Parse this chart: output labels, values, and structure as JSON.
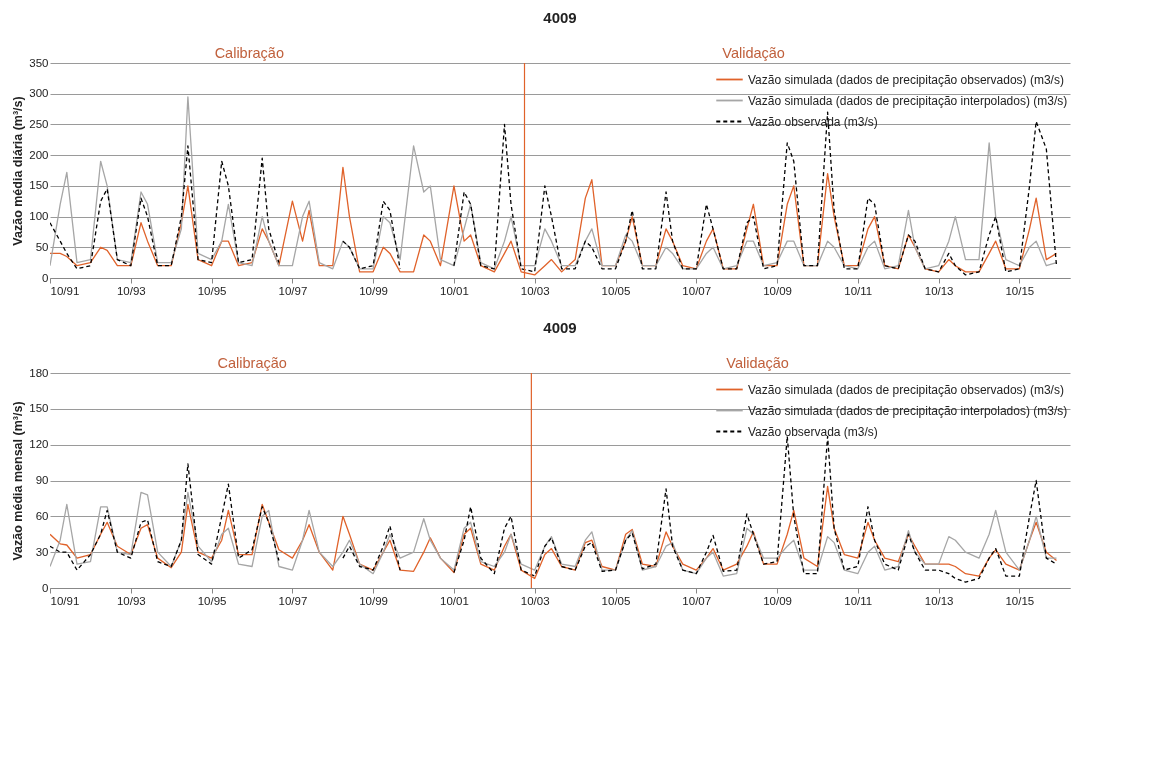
{
  "chart_data": [
    {
      "type": "line",
      "title": "4009",
      "ylabel": "Vazão média diária (m³/s)",
      "x": [
        "1991-10",
        "1992-01",
        "1992-03",
        "1992-06",
        "1992-10",
        "1993-01",
        "1993-03",
        "1993-06",
        "1993-10",
        "1994-01",
        "1994-03",
        "1994-06",
        "1994-10",
        "1995-01",
        "1995-03",
        "1995-06",
        "1995-10",
        "1996-01",
        "1996-03",
        "1996-06",
        "1996-10",
        "1997-01",
        "1997-03",
        "1997-06",
        "1997-10",
        "1998-01",
        "1998-03",
        "1998-06",
        "1998-10",
        "1999-01",
        "1999-03",
        "1999-06",
        "1999-10",
        "2000-01",
        "2000-03",
        "2000-06",
        "2000-10",
        "2001-01",
        "2001-03",
        "2001-06",
        "2001-10",
        "2002-01",
        "2002-03",
        "2002-06",
        "2002-10",
        "2003-01",
        "2003-03",
        "2003-06",
        "2003-10",
        "2004-01",
        "2004-03",
        "2004-06",
        "2004-10",
        "2005-01",
        "2005-03",
        "2005-06",
        "2005-10",
        "2006-01",
        "2006-03",
        "2006-06",
        "2006-10",
        "2007-01",
        "2007-03",
        "2007-06",
        "2007-10",
        "2008-01",
        "2008-03",
        "2008-06",
        "2008-10",
        "2009-01",
        "2009-03",
        "2009-06",
        "2009-10",
        "2010-01",
        "2010-03",
        "2010-06",
        "2010-10",
        "2011-01",
        "2011-03",
        "2011-06",
        "2011-10",
        "2012-01",
        "2012-03",
        "2012-06",
        "2012-10",
        "2013-01",
        "2013-03",
        "2013-06",
        "2013-10",
        "2014-01",
        "2014-03",
        "2014-06",
        "2014-10",
        "2015-01",
        "2015-03",
        "2015-06",
        "2015-10",
        "2016-01",
        "2016-03",
        "2016-06",
        "2016-09"
      ],
      "series": [
        {
          "name": "Vazão simulada (dados de precipitação observados) (m3/s)",
          "color": "#e0622a",
          "values": [
            40,
            40,
            35,
            20,
            25,
            50,
            45,
            20,
            20,
            90,
            60,
            20,
            20,
            90,
            150,
            30,
            20,
            60,
            60,
            20,
            25,
            80,
            60,
            20,
            125,
            60,
            110,
            20,
            20,
            180,
            100,
            10,
            10,
            50,
            40,
            10,
            10,
            70,
            60,
            20,
            150,
            60,
            70,
            20,
            10,
            40,
            60,
            10,
            5,
            20,
            30,
            10,
            30,
            130,
            160,
            20,
            20,
            60,
            100,
            20,
            20,
            80,
            60,
            20,
            15,
            60,
            80,
            15,
            15,
            80,
            120,
            20,
            20,
            120,
            150,
            20,
            20,
            170,
            100,
            20,
            20,
            80,
            100,
            20,
            15,
            70,
            50,
            15,
            10,
            30,
            20,
            10,
            10,
            40,
            60,
            15,
            15,
            80,
            130,
            30,
            40
          ]
        },
        {
          "name": "Vazão simulada (dados de precipitação interpolados) (m3/s)",
          "color": "#a6a6a6",
          "values": [
            20,
            120,
            172,
            25,
            30,
            190,
            150,
            30,
            25,
            140,
            120,
            25,
            25,
            80,
            295,
            40,
            30,
            60,
            120,
            25,
            20,
            100,
            60,
            20,
            20,
            100,
            125,
            25,
            15,
            60,
            50,
            15,
            15,
            100,
            90,
            30,
            215,
            140,
            150,
            30,
            20,
            80,
            120,
            25,
            15,
            60,
            100,
            20,
            20,
            80,
            60,
            20,
            20,
            60,
            80,
            20,
            20,
            70,
            60,
            20,
            20,
            50,
            40,
            15,
            15,
            40,
            50,
            15,
            20,
            60,
            60,
            20,
            25,
            60,
            60,
            20,
            20,
            60,
            50,
            20,
            15,
            50,
            60,
            15,
            20,
            110,
            50,
            15,
            20,
            60,
            100,
            30,
            30,
            220,
            100,
            30,
            20,
            50,
            60,
            20,
            25
          ]
        },
        {
          "name": "Vazão observada (m3/s)",
          "color": "#000000",
          "line_style": "dashed",
          "values": [
            90,
            60,
            40,
            15,
            20,
            125,
            145,
            30,
            20,
            130,
            100,
            20,
            20,
            100,
            215,
            30,
            25,
            190,
            150,
            25,
            30,
            195,
            80,
            25,
            null,
            null,
            null,
            null,
            null,
            60,
            50,
            15,
            20,
            125,
            110,
            15,
            null,
            null,
            null,
            null,
            20,
            140,
            120,
            20,
            15,
            250,
            120,
            15,
            10,
            150,
            100,
            15,
            15,
            60,
            50,
            15,
            15,
            60,
            110,
            15,
            15,
            140,
            60,
            15,
            15,
            120,
            80,
            15,
            15,
            90,
            100,
            15,
            20,
            220,
            190,
            20,
            20,
            270,
            110,
            15,
            15,
            130,
            120,
            20,
            15,
            70,
            60,
            15,
            10,
            40,
            20,
            5,
            10,
            70,
            100,
            10,
            15,
            150,
            255,
            210,
            20
          ]
        }
      ],
      "xlim": [
        "1991-10",
        "2017-01"
      ],
      "xticks": [
        {
          "value": "1991-10",
          "label": "10/91"
        },
        {
          "value": "1993-10",
          "label": "10/93"
        },
        {
          "value": "1995-10",
          "label": "10/95"
        },
        {
          "value": "1997-10",
          "label": "10/97"
        },
        {
          "value": "1999-10",
          "label": "10/99"
        },
        {
          "value": "2001-10",
          "label": "10/01"
        },
        {
          "value": "2003-10",
          "label": "10/03"
        },
        {
          "value": "2005-10",
          "label": "10/05"
        },
        {
          "value": "2007-10",
          "label": "10/07"
        },
        {
          "value": "2009-10",
          "label": "10/09"
        },
        {
          "value": "2011-10",
          "label": "10/11"
        },
        {
          "value": "2013-10",
          "label": "10/13"
        },
        {
          "value": "2015-10",
          "label": "10/15"
        }
      ],
      "ylim": [
        0,
        350
      ],
      "yticks": [
        0,
        50,
        100,
        150,
        200,
        250,
        300,
        350
      ],
      "grid": "y",
      "legend": "top right",
      "ref_lines": [
        {
          "axis": "x",
          "value": "2003-07",
          "color": "#e0622a"
        }
      ],
      "annotations": [
        "Calibração",
        "Validação"
      ]
    },
    {
      "type": "line",
      "title": "4009",
      "ylabel": "Vazão média mensal (m³/s)",
      "x": [
        "1991-10",
        "1992-01",
        "1992-03",
        "1992-06",
        "1992-10",
        "1993-01",
        "1993-03",
        "1993-06",
        "1993-10",
        "1994-01",
        "1994-03",
        "1994-06",
        "1994-10",
        "1995-01",
        "1995-03",
        "1995-06",
        "1995-10",
        "1996-01",
        "1996-03",
        "1996-06",
        "1996-10",
        "1997-01",
        "1997-03",
        "1997-06",
        "1997-10",
        "1998-01",
        "1998-03",
        "1998-06",
        "1998-10",
        "1999-01",
        "1999-03",
        "1999-06",
        "1999-10",
        "2000-01",
        "2000-03",
        "2000-06",
        "2000-10",
        "2001-01",
        "2001-03",
        "2001-06",
        "2001-10",
        "2002-01",
        "2002-03",
        "2002-06",
        "2002-10",
        "2003-01",
        "2003-03",
        "2003-06",
        "2003-10",
        "2004-01",
        "2004-03",
        "2004-06",
        "2004-10",
        "2005-01",
        "2005-03",
        "2005-06",
        "2005-10",
        "2006-01",
        "2006-03",
        "2006-06",
        "2006-10",
        "2007-01",
        "2007-03",
        "2007-06",
        "2007-10",
        "2008-01",
        "2008-03",
        "2008-06",
        "2008-10",
        "2009-01",
        "2009-03",
        "2009-06",
        "2009-10",
        "2010-01",
        "2010-03",
        "2010-06",
        "2010-10",
        "2011-01",
        "2011-03",
        "2011-06",
        "2011-10",
        "2012-01",
        "2012-03",
        "2012-06",
        "2012-10",
        "2013-01",
        "2013-03",
        "2013-06",
        "2013-10",
        "2014-01",
        "2014-03",
        "2014-06",
        "2014-10",
        "2015-01",
        "2015-03",
        "2015-06",
        "2015-10",
        "2016-01",
        "2016-03",
        "2016-06",
        "2016-09"
      ],
      "series": [
        {
          "name": "Vazão simulada (dados de precipitação observados) (m3/s)",
          "color": "#e0622a",
          "values": [
            45,
            37,
            36,
            25,
            28,
            45,
            55,
            35,
            28,
            50,
            53,
            25,
            17,
            30,
            70,
            30,
            25,
            40,
            65,
            28,
            28,
            70,
            55,
            32,
            25,
            40,
            53,
            30,
            15,
            60,
            45,
            20,
            15,
            30,
            40,
            15,
            14,
            30,
            42,
            25,
            13,
            45,
            50,
            20,
            15,
            35,
            45,
            15,
            8,
            28,
            33,
            18,
            15,
            38,
            40,
            18,
            15,
            45,
            49,
            20,
            18,
            47,
            35,
            20,
            15,
            25,
            33,
            15,
            20,
            35,
            47,
            20,
            20,
            45,
            65,
            25,
            18,
            85,
            50,
            28,
            25,
            55,
            40,
            25,
            22,
            45,
            35,
            20,
            20,
            20,
            18,
            12,
            10,
            25,
            32,
            20,
            15,
            40,
            55,
            30,
            23
          ]
        },
        {
          "name": "Vazão simulada (dados de precipitação interpolados) (m3/s)",
          "color": "#a6a6a6",
          "values": [
            18,
            40,
            70,
            20,
            22,
            68,
            68,
            30,
            28,
            80,
            78,
            30,
            18,
            40,
            80,
            35,
            22,
            45,
            50,
            20,
            18,
            60,
            65,
            18,
            15,
            40,
            65,
            30,
            18,
            30,
            40,
            20,
            12,
            30,
            45,
            25,
            30,
            58,
            40,
            25,
            15,
            50,
            55,
            22,
            18,
            30,
            45,
            20,
            15,
            35,
            43,
            20,
            18,
            40,
            47,
            15,
            15,
            40,
            48,
            15,
            18,
            35,
            38,
            15,
            12,
            25,
            30,
            10,
            12,
            50,
            45,
            25,
            25,
            35,
            40,
            15,
            15,
            43,
            38,
            15,
            12,
            30,
            35,
            15,
            18,
            48,
            30,
            20,
            20,
            43,
            40,
            30,
            25,
            45,
            65,
            30,
            15,
            40,
            60,
            25,
            25
          ]
        },
        {
          "name": "Vazão observada (m3/s)",
          "color": "#000000",
          "line_style": "dashed",
          "values": [
            35,
            30,
            30,
            15,
            28,
            45,
            65,
            30,
            25,
            55,
            57,
            22,
            18,
            40,
            104,
            28,
            20,
            60,
            87,
            25,
            32,
            68,
            55,
            23,
            null,
            null,
            null,
            null,
            null,
            25,
            35,
            18,
            15,
            35,
            52,
            15,
            null,
            null,
            null,
            null,
            13,
            40,
            68,
            25,
            12,
            50,
            60,
            15,
            10,
            35,
            42,
            18,
            15,
            35,
            38,
            14,
            15,
            40,
            46,
            16,
            20,
            83,
            35,
            15,
            12,
            30,
            44,
            14,
            15,
            62,
            45,
            20,
            22,
            127,
            60,
            12,
            12,
            127,
            50,
            15,
            18,
            68,
            40,
            20,
            15,
            45,
            30,
            15,
            15,
            12,
            8,
            5,
            8,
            25,
            33,
            10,
            10,
            60,
            90,
            25,
            20
          ]
        }
      ],
      "xlim": [
        "1991-10",
        "2017-01"
      ],
      "xticks": [
        {
          "value": "1991-10",
          "label": "10/91"
        },
        {
          "value": "1993-10",
          "label": "10/93"
        },
        {
          "value": "1995-10",
          "label": "10/95"
        },
        {
          "value": "1997-10",
          "label": "10/97"
        },
        {
          "value": "1999-10",
          "label": "10/99"
        },
        {
          "value": "2001-10",
          "label": "10/01"
        },
        {
          "value": "2003-10",
          "label": "10/03"
        },
        {
          "value": "2005-10",
          "label": "10/05"
        },
        {
          "value": "2007-10",
          "label": "10/07"
        },
        {
          "value": "2009-10",
          "label": "10/09"
        },
        {
          "value": "2011-10",
          "label": "10/11"
        },
        {
          "value": "2013-10",
          "label": "10/13"
        },
        {
          "value": "2015-10",
          "label": "10/15"
        }
      ],
      "ylim": [
        0,
        180
      ],
      "yticks": [
        0,
        30,
        60,
        90,
        120,
        150,
        180
      ],
      "grid": "y",
      "legend": "top right",
      "ref_lines": [
        {
          "axis": "x",
          "value": "2003-09",
          "color": "#e0622a"
        }
      ],
      "annotations": [
        "Calibração",
        "Validação"
      ]
    }
  ]
}
